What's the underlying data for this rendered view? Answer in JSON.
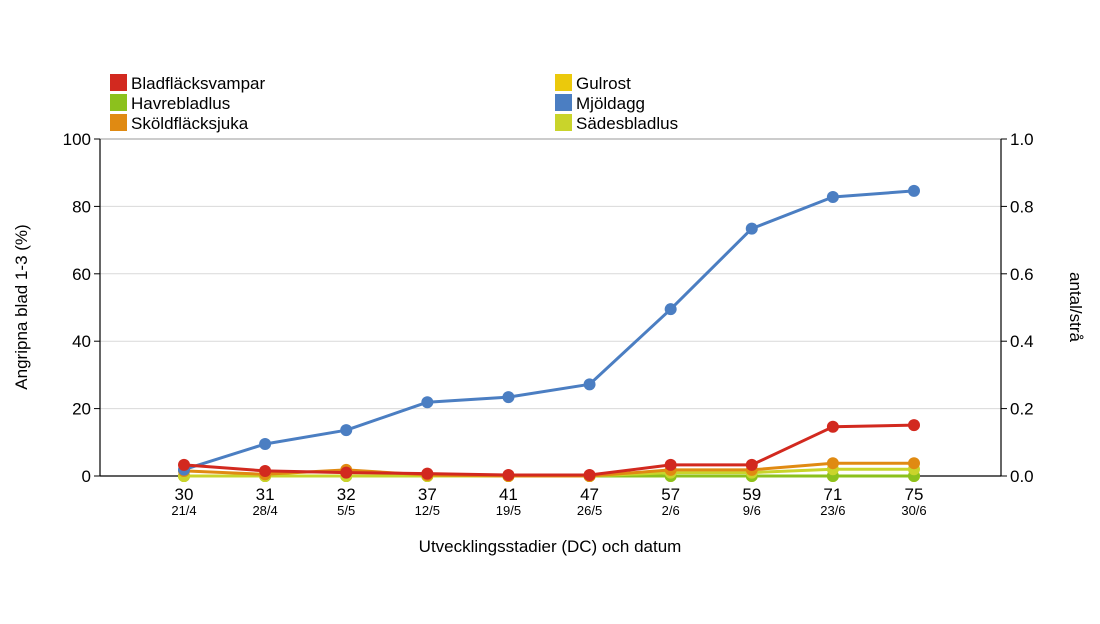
{
  "chart_data": {
    "type": "line",
    "title": "",
    "xlabel": "Utvecklingsstadier (DC) och datum",
    "ylabel": "Angripna blad 1-3 (%)",
    "y2label": "antal/strå",
    "ylim": [
      0,
      100
    ],
    "y2lim": [
      0,
      1.0
    ],
    "yticks": [
      "0",
      "20",
      "40",
      "60",
      "80",
      "100"
    ],
    "y2ticks": [
      "0.0",
      "0.2",
      "0.4",
      "0.6",
      "0.8",
      "1.0"
    ],
    "grid": true,
    "legend_position": "top",
    "categories": [
      "30",
      "31",
      "32",
      "37",
      "41",
      "47",
      "57",
      "59",
      "71",
      "75"
    ],
    "dates": [
      "21/4",
      "28/4",
      "5/5",
      "12/5",
      "19/5",
      "26/5",
      "2/6",
      "9/6",
      "23/6",
      "30/6"
    ],
    "series": [
      {
        "name": "Bladfläcksvampar",
        "color": "#d2291f",
        "axis": "left",
        "values": [
          3.3,
          1.5,
          1.0,
          0.7,
          0.3,
          0.3,
          3.3,
          3.3,
          14.6,
          15.1
        ]
      },
      {
        "name": "Gulrost",
        "color": "#ebc90c",
        "axis": "left",
        "values": [
          0,
          0,
          0,
          0,
          0,
          0,
          0,
          0,
          0,
          0
        ]
      },
      {
        "name": "Havrebladlus",
        "color": "#8cc11d",
        "axis": "right",
        "values": [
          0,
          0,
          0,
          0,
          0,
          0,
          0,
          0,
          0,
          0
        ]
      },
      {
        "name": "Mjöldagg",
        "color": "#4b7ec2",
        "axis": "left",
        "values": [
          1.9,
          9.5,
          13.6,
          21.9,
          23.4,
          27.2,
          49.5,
          73.4,
          82.8,
          84.6
        ]
      },
      {
        "name": "Sköldfläcksjuka",
        "color": "#e08a12",
        "axis": "left",
        "values": [
          1.5,
          0.5,
          1.8,
          0.3,
          0,
          0,
          1.8,
          1.8,
          3.8,
          3.8
        ]
      },
      {
        "name": "Sädesbladlus",
        "color": "#c9d42b",
        "axis": "right",
        "values": [
          0,
          0,
          0,
          0,
          0,
          0,
          0.01,
          0.01,
          0.02,
          0.02
        ]
      }
    ]
  }
}
